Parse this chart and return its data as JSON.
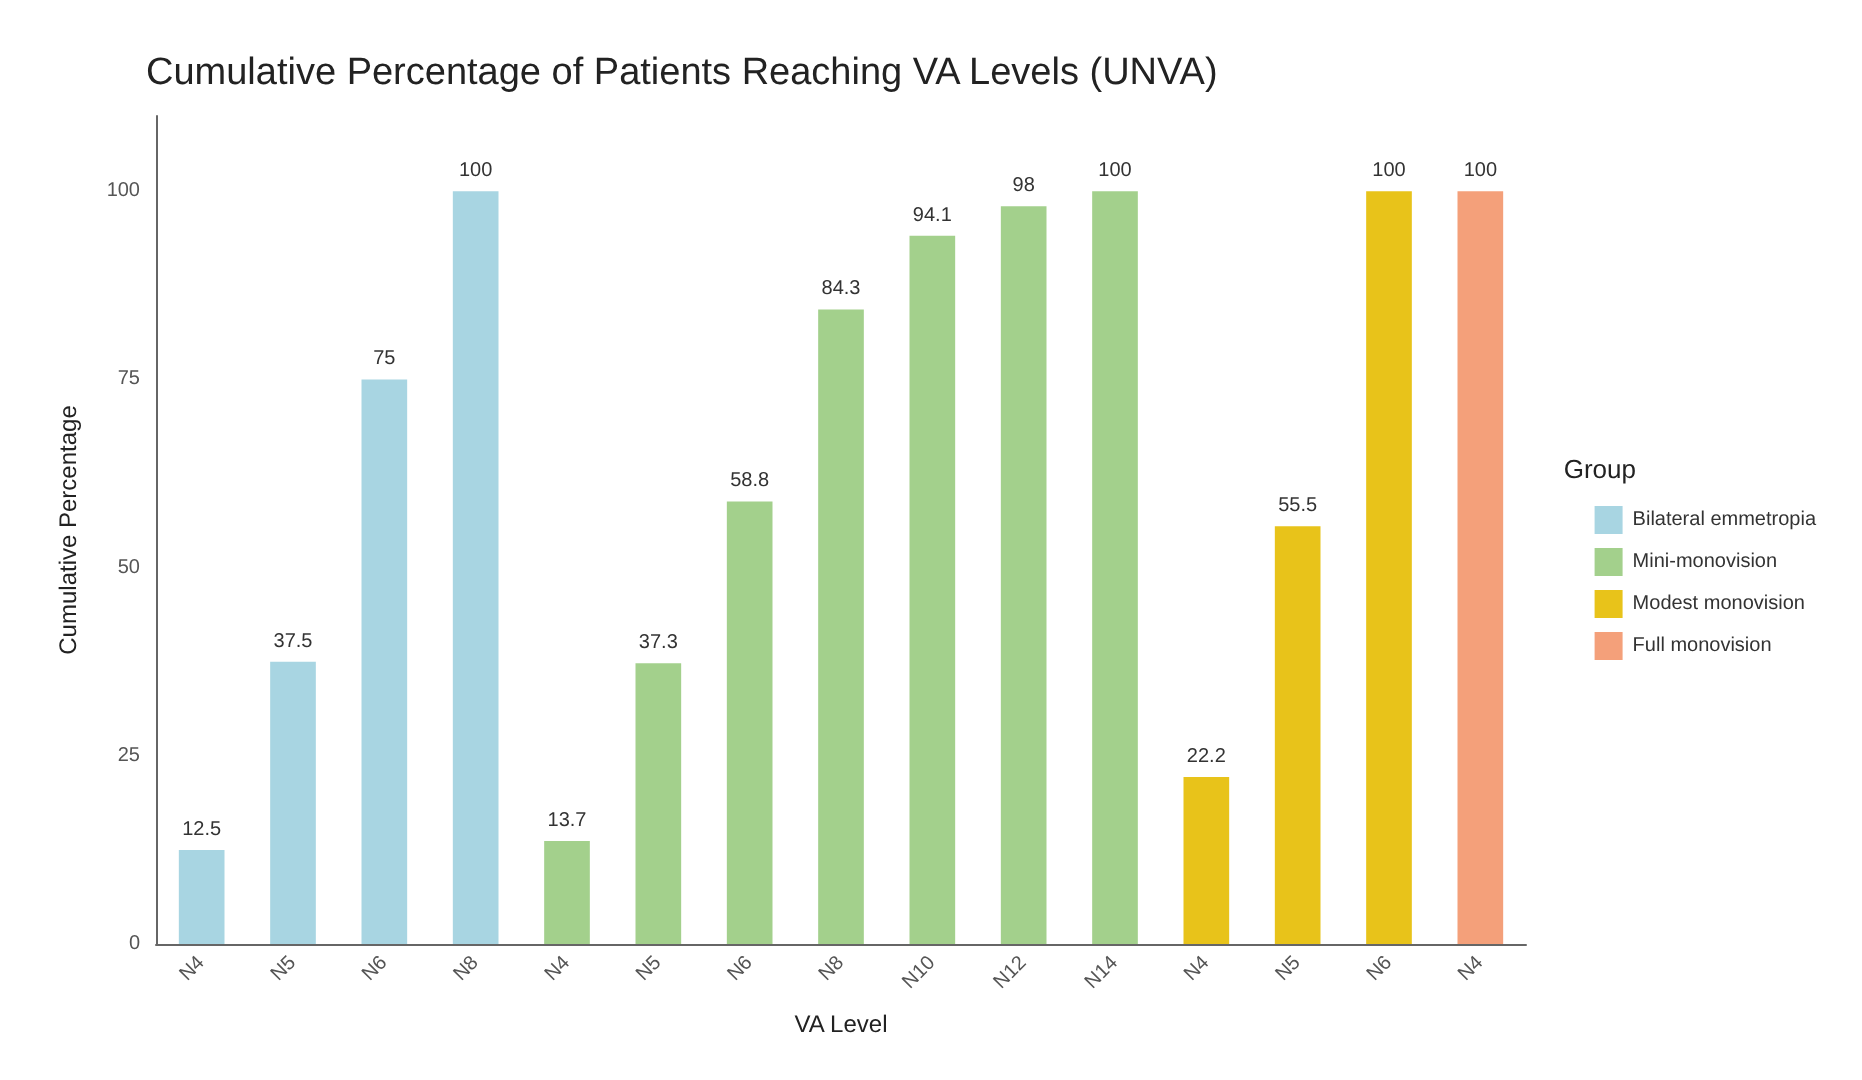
{
  "chart_data": {
    "type": "bar",
    "title": "Cumulative Percentage of Patients Reaching VA Levels (UNVA)",
    "xlabel": "VA Level",
    "ylabel": "Cumulative Percentage",
    "legend_title": "Group",
    "categories": [
      "N4",
      "N5",
      "N6",
      "N8",
      "N4",
      "N5",
      "N6",
      "N8",
      "N10",
      "N12",
      "N14",
      "N4",
      "N5",
      "N6",
      "N4"
    ],
    "series": [
      {
        "name": "Bilateral emmetropia",
        "color": "#a8d5e2",
        "values": [
          12.5,
          37.5,
          75,
          100,
          null,
          null,
          null,
          null,
          null,
          null,
          null,
          null,
          null,
          null,
          null
        ]
      },
      {
        "name": "Mini-monovision",
        "color": "#a3d08c",
        "values": [
          null,
          null,
          null,
          null,
          13.7,
          37.3,
          58.8,
          84.3,
          94.1,
          98,
          100,
          null,
          null,
          null,
          null
        ]
      },
      {
        "name": "Modest monovision",
        "color": "#e8c31a",
        "values": [
          null,
          null,
          null,
          null,
          null,
          null,
          null,
          null,
          null,
          null,
          null,
          22.2,
          55.5,
          100,
          null
        ]
      },
      {
        "name": "Full monovision",
        "color": "#f4a07a",
        "values": [
          null,
          null,
          null,
          null,
          null,
          null,
          null,
          null,
          null,
          null,
          null,
          null,
          null,
          null,
          100
        ]
      }
    ],
    "ylim": [
      0,
      110
    ],
    "yticks": [
      0,
      25,
      50,
      75,
      100
    ],
    "grid": false,
    "legend": "right",
    "data_labels": true
  }
}
